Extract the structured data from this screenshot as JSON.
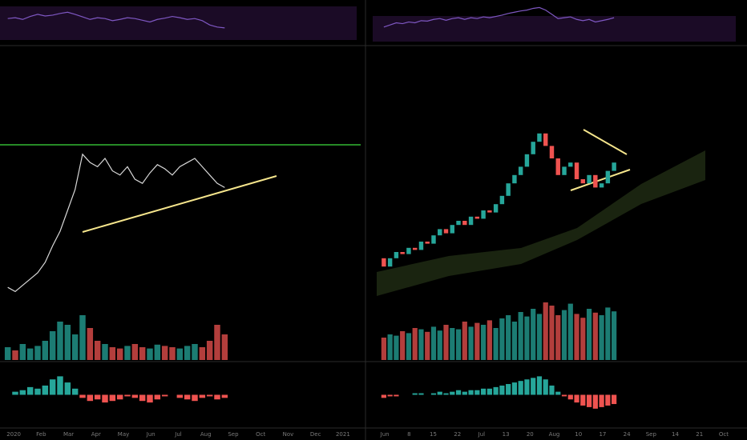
{
  "chart_data": [
    {
      "type": "line",
      "xticks": [
        "2020",
        "Feb",
        "Mar",
        "Apr",
        "May",
        "Jun",
        "Jul",
        "Aug",
        "Sep",
        "Oct",
        "Nov",
        "Dec",
        "2021"
      ],
      "ylim": [
        0,
        100
      ],
      "series": [
        {
          "name": "price",
          "color": "#d8d8d8",
          "values": [
            8,
            6,
            9,
            12,
            15,
            20,
            28,
            35,
            45,
            55,
            72,
            68,
            66,
            70,
            64,
            62,
            66,
            60,
            58,
            63,
            67,
            65,
            62,
            66,
            68,
            70,
            66,
            62,
            58,
            56
          ]
        }
      ],
      "volume": {
        "ylim": [
          0,
          100
        ],
        "values": [
          20,
          15,
          25,
          18,
          22,
          30,
          45,
          60,
          55,
          40,
          70,
          50,
          30,
          25,
          20,
          18,
          22,
          25,
          20,
          18,
          24,
          22,
          20,
          18,
          22,
          25,
          20,
          30,
          55,
          40
        ]
      },
      "rsi": {
        "ylim": [
          0,
          100
        ],
        "color": "#7e57c2",
        "values": [
          60,
          62,
          58,
          65,
          70,
          66,
          68,
          72,
          75,
          70,
          64,
          58,
          62,
          60,
          55,
          58,
          62,
          60,
          56,
          52,
          58,
          61,
          65,
          62,
          58,
          60,
          55,
          45,
          40,
          38
        ]
      },
      "macd": {
        "ylim": [
          -20,
          20
        ],
        "values": [
          0,
          2,
          3,
          5,
          4,
          6,
          10,
          12,
          8,
          4,
          -2,
          -4,
          -3,
          -5,
          -4,
          -3,
          -1,
          -2,
          -4,
          -5,
          -3,
          -1,
          0,
          -2,
          -3,
          -4,
          -2,
          -1,
          -3,
          -2
        ]
      },
      "up_color": "#26a69a",
      "down_color": "#ef5350"
    },
    {
      "type": "candlestick",
      "xticks": [
        "Jun",
        "8",
        "15",
        "22",
        "Jul",
        "13",
        "20",
        "Aug",
        "10",
        "17",
        "24",
        "Sep",
        "14",
        "21",
        "Oct"
      ],
      "ylim": [
        0,
        100
      ],
      "open": [
        22,
        18,
        22,
        25,
        24,
        27,
        26,
        30,
        29,
        33,
        36,
        34,
        38,
        40,
        38,
        42,
        41,
        45,
        44,
        48,
        52,
        58,
        62,
        66,
        72,
        78,
        82,
        76,
        70,
        62,
        66,
        68,
        60,
        58,
        62,
        56,
        58,
        64
      ],
      "close": [
        18,
        22,
        25,
        24,
        27,
        26,
        30,
        29,
        33,
        36,
        34,
        38,
        40,
        38,
        42,
        41,
        45,
        44,
        48,
        52,
        58,
        62,
        66,
        72,
        78,
        82,
        76,
        70,
        62,
        66,
        68,
        60,
        58,
        62,
        56,
        58,
        64,
        68
      ],
      "volume": {
        "ylim": [
          0,
          100
        ],
        "values": [
          35,
          40,
          38,
          45,
          42,
          50,
          48,
          44,
          52,
          46,
          55,
          50,
          48,
          60,
          52,
          58,
          55,
          62,
          50,
          65,
          70,
          60,
          75,
          68,
          80,
          72,
          90,
          85,
          70,
          78,
          88,
          72,
          66,
          80,
          74,
          70,
          82,
          76
        ]
      },
      "rsi": {
        "ylim": [
          0,
          100
        ],
        "color": "#7e57c2",
        "values": [
          40,
          45,
          50,
          48,
          52,
          50,
          55,
          54,
          58,
          60,
          56,
          60,
          62,
          58,
          62,
          60,
          64,
          62,
          65,
          68,
          72,
          75,
          78,
          80,
          84,
          86,
          80,
          70,
          60,
          62,
          64,
          58,
          55,
          58,
          52,
          55,
          58,
          62
        ]
      },
      "macd": {
        "ylim": [
          -20,
          20
        ],
        "values": [
          -2,
          -1,
          -1,
          0,
          0,
          1,
          1,
          0,
          1,
          2,
          1,
          2,
          3,
          2,
          3,
          3,
          4,
          4,
          5,
          6,
          7,
          8,
          9,
          10,
          11,
          12,
          10,
          6,
          2,
          -1,
          -3,
          -5,
          -7,
          -8,
          -9,
          -8,
          -7,
          -6
        ]
      },
      "up_color": "#26a69a",
      "down_color": "#ef5350"
    }
  ]
}
